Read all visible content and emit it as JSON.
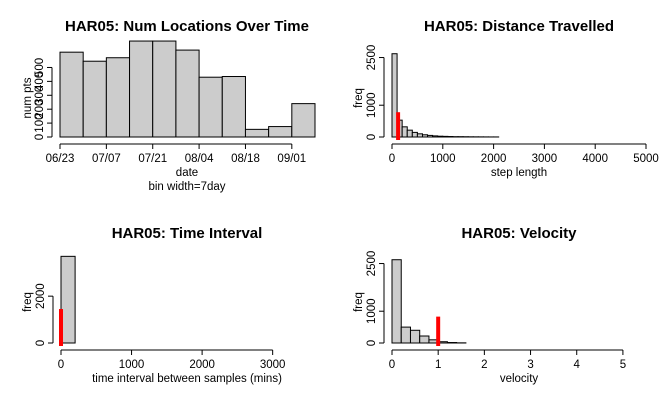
{
  "chart_data": [
    {
      "type": "bar",
      "title": "HAR05: Num Locations Over Time",
      "xlabel": "date",
      "subtitle": "bin width=7day",
      "ylabel": "num pts",
      "x_tick_labels": [
        "06/23",
        "07/07",
        "07/21",
        "08/04",
        "08/18",
        "09/01"
      ],
      "y_ticks": [
        0,
        100,
        200,
        300,
        400,
        500
      ],
      "ylim": [
        0,
        640
      ],
      "values": [
        610,
        545,
        570,
        690,
        690,
        625,
        430,
        435,
        55,
        75,
        240
      ]
    },
    {
      "type": "bar",
      "title": "HAR05: Distance Travelled",
      "xlabel": "step length",
      "ylabel": "freq",
      "x_ticks": [
        0,
        1000,
        2000,
        3000,
        4000,
        5000
      ],
      "y_ticks": [
        0,
        1000,
        2500
      ],
      "xlim": [
        0,
        5000
      ],
      "ylim": [
        0,
        2800
      ],
      "bin_width": 100,
      "values": [
        2620,
        530,
        320,
        215,
        145,
        100,
        70,
        50,
        35,
        25,
        20,
        15,
        10,
        10,
        8,
        6,
        5,
        4,
        3,
        2,
        2
      ],
      "marker": {
        "x": 120,
        "value": 780,
        "color": "#ff0000"
      }
    },
    {
      "type": "bar",
      "title": "HAR05: Time Interval",
      "xlabel": "time interval between samples (mins)",
      "ylabel": "freq",
      "x_ticks": [
        0,
        1000,
        2000,
        3000
      ],
      "y_ticks": [
        0,
        2000
      ],
      "xlim": [
        0,
        3600
      ],
      "ylim": [
        0,
        3800
      ],
      "bin_width": 200,
      "values": [
        3700
      ],
      "marker": {
        "x": 0,
        "value": 1450,
        "color": "#ff0000"
      }
    },
    {
      "type": "bar",
      "title": "HAR05: Velocity",
      "xlabel": "velocity",
      "ylabel": "freq",
      "x_ticks": [
        0,
        1,
        2,
        3,
        4,
        5
      ],
      "y_ticks": [
        0,
        1000,
        2500
      ],
      "xlim": [
        0,
        5.5
      ],
      "ylim": [
        0,
        2800
      ],
      "bin_width": 0.2,
      "values": [
        2620,
        500,
        400,
        220,
        100,
        40,
        15,
        5
      ],
      "marker": {
        "x": 1,
        "value": 830,
        "color": "#ff0000"
      }
    }
  ]
}
